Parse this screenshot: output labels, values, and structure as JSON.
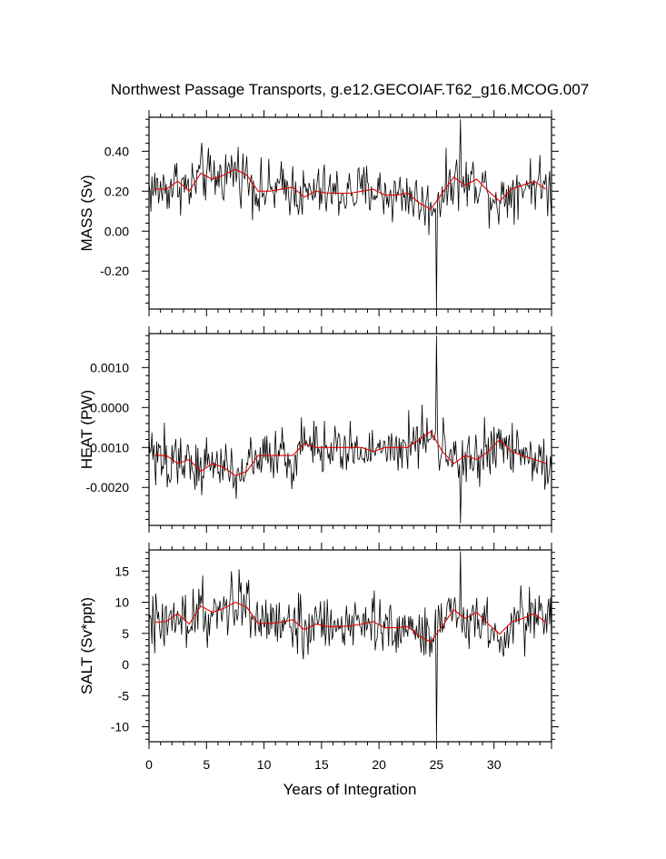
{
  "title": "Northwest Passage Transports, g.e12.GECOIAF.T62_g16.MCOG.007",
  "xlabel": "Years of Integration",
  "colors": {
    "monthly": "#000000",
    "annual": "#e00000",
    "frame": "#000000"
  },
  "chart_data": [
    {
      "type": "line",
      "ylabel": "MASS (Sv)",
      "xlim": [
        0,
        35
      ],
      "ylim": [
        -0.39,
        0.57
      ],
      "yticks": [
        -0.2,
        0.0,
        0.2,
        0.4
      ],
      "ytick_labels": [
        "-0.20",
        "0.00",
        "0.20",
        "0.40"
      ],
      "xticks": [
        0,
        5,
        10,
        15,
        20,
        25,
        30
      ],
      "xtick_labels": [],
      "monthly_summary": {
        "typical": 0.22,
        "min": -0.39,
        "min_at": 25.0,
        "max": 0.56,
        "max_at": 27.1
      },
      "series": [
        {
          "name": "",
          "x": [
            0.5,
            1.5,
            2.5,
            3.5,
            4.5,
            5.5,
            6.5,
            7.5,
            8.5,
            9.5,
            10.5,
            11.5,
            12.5,
            13.5,
            14.5,
            15.5,
            16.5,
            17.5,
            18.5,
            19.5,
            20.5,
            21.5,
            22.5,
            23.5,
            24.5,
            25.5,
            26.5,
            27.5,
            28.5,
            29.5,
            30.5,
            31.5,
            32.5,
            33.5,
            34.5
          ],
          "y": [
            0.21,
            0.21,
            0.25,
            0.2,
            0.29,
            0.26,
            0.28,
            0.31,
            0.28,
            0.2,
            0.2,
            0.21,
            0.22,
            0.17,
            0.2,
            0.19,
            0.19,
            0.19,
            0.2,
            0.21,
            0.18,
            0.18,
            0.19,
            0.14,
            0.11,
            0.19,
            0.27,
            0.23,
            0.26,
            0.2,
            0.15,
            0.21,
            0.23,
            0.25,
            0.21
          ]
        }
      ]
    },
    {
      "type": "line",
      "ylabel": "HEAT (PW)",
      "xlim": [
        0,
        35
      ],
      "ylim": [
        -0.00295,
        0.00185
      ],
      "yticks": [
        -0.002,
        -0.001,
        0.0,
        0.001
      ],
      "ytick_labels": [
        "-0.0020",
        "-0.0010",
        "0.0000",
        "0.0010"
      ],
      "xticks": [
        0,
        5,
        10,
        15,
        20,
        25,
        30
      ],
      "xtick_labels": [],
      "monthly_summary": {
        "typical": -0.0012,
        "min": -0.0029,
        "min_at": 27.1,
        "max": 0.0018,
        "max_at": 25.0
      },
      "series": [
        {
          "name": "",
          "x": [
            0.5,
            1.5,
            2.5,
            3.5,
            4.5,
            5.5,
            6.5,
            7.5,
            8.5,
            9.5,
            10.5,
            11.5,
            12.5,
            13.5,
            14.5,
            15.5,
            16.5,
            17.5,
            18.5,
            19.5,
            20.5,
            21.5,
            22.5,
            23.5,
            24.5,
            25.5,
            26.5,
            27.5,
            28.5,
            29.5,
            30.5,
            31.5,
            32.5,
            33.5,
            34.5
          ],
          "y": [
            -0.0012,
            -0.0012,
            -0.0014,
            -0.0013,
            -0.0016,
            -0.0014,
            -0.0015,
            -0.0017,
            -0.0016,
            -0.0012,
            -0.0012,
            -0.0012,
            -0.0012,
            -0.0009,
            -0.001,
            -0.001,
            -0.001,
            -0.001,
            -0.001,
            -0.0011,
            -0.001,
            -0.001,
            -0.001,
            -0.0008,
            -0.0006,
            -0.0011,
            -0.0014,
            -0.0012,
            -0.0013,
            -0.0011,
            -0.0008,
            -0.0011,
            -0.0012,
            -0.0013,
            -0.0014
          ]
        }
      ]
    },
    {
      "type": "line",
      "ylabel": "SALT (Sv*ppt)",
      "xlim": [
        0,
        35
      ],
      "ylim": [
        -12.4,
        18.4
      ],
      "yticks": [
        -10,
        -5,
        0,
        5,
        10,
        15
      ],
      "ytick_labels": [
        "-10",
        "-5",
        "0",
        "5",
        "10",
        "15"
      ],
      "xticks": [
        0,
        5,
        10,
        15,
        20,
        25,
        30
      ],
      "xtick_labels": [
        "0",
        "5",
        "10",
        "15",
        "20",
        "25",
        "30"
      ],
      "monthly_summary": {
        "typical": 7.0,
        "min": -12.3,
        "min_at": 25.0,
        "max": 18.2,
        "max_at": 27.1
      },
      "series": [
        {
          "name": "",
          "x": [
            0.5,
            1.5,
            2.5,
            3.5,
            4.5,
            5.5,
            6.5,
            7.5,
            8.5,
            9.5,
            10.5,
            11.5,
            12.5,
            13.5,
            14.5,
            15.5,
            16.5,
            17.5,
            18.5,
            19.5,
            20.5,
            21.5,
            22.5,
            23.5,
            24.5,
            25.5,
            26.5,
            27.5,
            28.5,
            29.5,
            30.5,
            31.5,
            32.5,
            33.5,
            34.5
          ],
          "y": [
            6.8,
            6.9,
            8.2,
            6.5,
            9.4,
            8.4,
            9.0,
            10.0,
            9.2,
            6.6,
            6.6,
            6.8,
            7.2,
            5.6,
            6.5,
            6.1,
            6.1,
            6.2,
            6.5,
            6.9,
            5.9,
            5.9,
            6.1,
            4.6,
            3.6,
            6.2,
            8.8,
            7.4,
            8.4,
            6.5,
            4.9,
            6.8,
            7.4,
            8.2,
            6.8
          ]
        }
      ]
    }
  ]
}
